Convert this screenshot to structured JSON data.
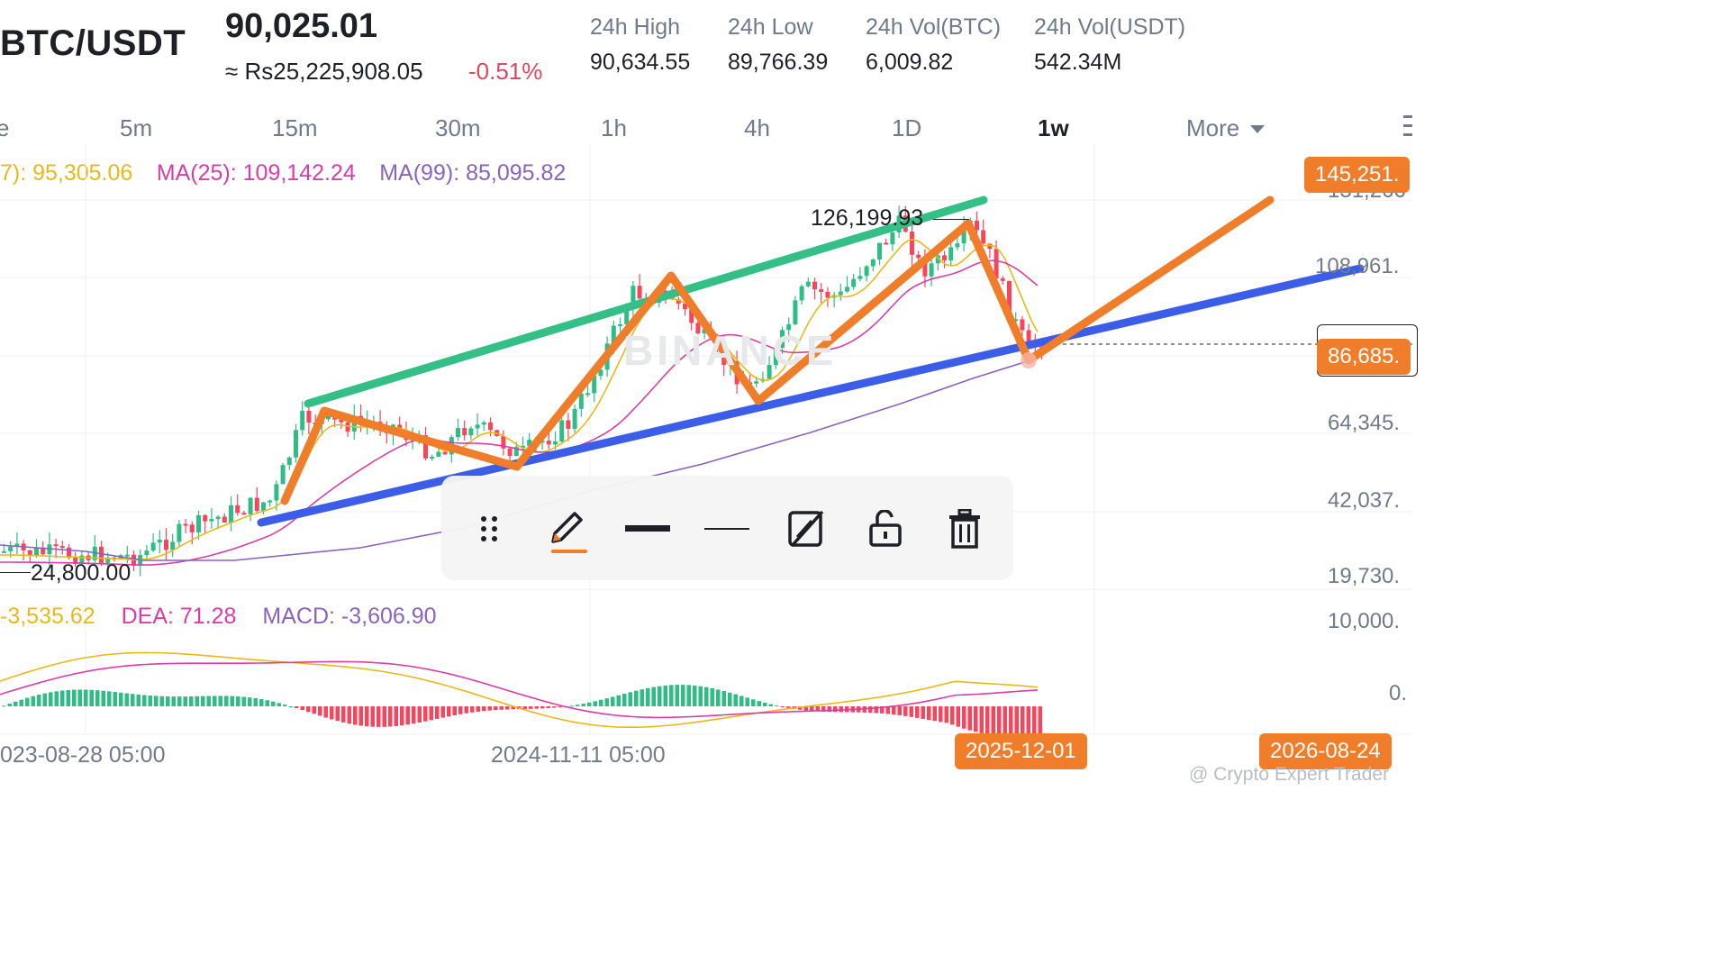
{
  "header": {
    "pair": "BTC/USDT",
    "price": "90,025.01",
    "fiat": "≈ Rs25,225,908.05",
    "change": "-0.51%",
    "stats": [
      {
        "label": "24h High",
        "value": "90,634.55"
      },
      {
        "label": "24h Low",
        "value": "89,766.39"
      },
      {
        "label": "24h Vol(BTC)",
        "value": "6,009.82"
      },
      {
        "label": "24h Vol(USDT)",
        "value": "542.34M"
      }
    ]
  },
  "timeframes": {
    "partial": "e",
    "items": [
      "5m",
      "15m",
      "30m",
      "1h",
      "4h",
      "1D",
      "1w"
    ],
    "active": "1w",
    "more": "More"
  },
  "ma": {
    "ma7": "7): 95,305.06",
    "ma25": "MA(25): 109,142.24",
    "ma99": "MA(99): 85,095.82"
  },
  "price_axis": {
    "ticks": [
      "131,266",
      "108,961.",
      "64,345.",
      "42,037.",
      "19,730."
    ],
    "top_tag": "145,251.",
    "current_tag": "86,685."
  },
  "annotations": {
    "high": "126,199.93",
    "low": "24,800.00"
  },
  "macd": {
    "dif": "-3,535.62",
    "dea": "DEA: 71.28",
    "macd": "MACD: -3,606.90",
    "axis_top": "10,000.",
    "axis_zero": "0."
  },
  "dates": {
    "d1": "023-08-28 05:00",
    "d2": "2024-11-11 05:00",
    "tag1": "2025-12-01",
    "tag2": "2026-08-24"
  },
  "watermark": "@ Crypto Expert Trader",
  "brand_watermark": "BINANCE",
  "toolbar_icons": [
    "drag-handle-icon",
    "pencil-icon",
    "thick-line-icon",
    "thin-line-icon",
    "hide-drawing-icon",
    "unlock-icon",
    "trash-icon"
  ],
  "colors": {
    "up": "#2ebd85",
    "down": "#f6465d",
    "ma7": "#e8b91b",
    "ma25": "#d83ea5",
    "ma99": "#8a63bd",
    "trend_upper": "#33bf85",
    "trend_lower": "#3b5de7",
    "zigzag": "#ef7d2a"
  },
  "chart_data": {
    "type": "candlestick",
    "interval": "1w",
    "price_range": [
      19730,
      145251
    ],
    "series": [
      {
        "name": "MA(7)",
        "value": 95305.06
      },
      {
        "name": "MA(25)",
        "value": 109142.24
      },
      {
        "name": "MA(99)",
        "value": 85095.82
      }
    ],
    "swing_points": [
      {
        "date": "2023-09",
        "price": 25000
      },
      {
        "date": "2024-03",
        "price": 72000
      },
      {
        "date": "2024-08",
        "price": 50000
      },
      {
        "date": "2024-12",
        "price": 108000
      },
      {
        "date": "2025-04",
        "price": 76000
      },
      {
        "date": "2025-10",
        "price": 126199.93
      },
      {
        "date": "2025-12-01",
        "price": 84000
      },
      {
        "date": "2026-06",
        "price": 145000
      }
    ],
    "macd": {
      "dif": -3535.62,
      "dea": 71.28,
      "macd": -3606.9
    }
  }
}
